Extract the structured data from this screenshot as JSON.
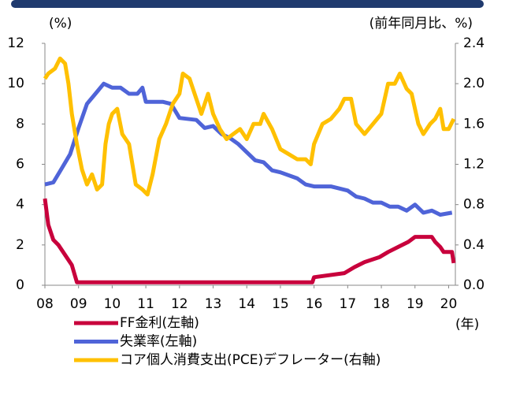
{
  "chart_data": {
    "type": "line",
    "y_label": "(%)",
    "y2_label": "(前年同月比、%)",
    "x_label": "(年)",
    "xlim": [
      2008,
      2020.2
    ],
    "xticks": [
      {
        "value": 2008,
        "label": "08"
      },
      {
        "value": 2009,
        "label": "09"
      },
      {
        "value": 2010,
        "label": "10"
      },
      {
        "value": 2011,
        "label": "11"
      },
      {
        "value": 2012,
        "label": "12"
      },
      {
        "value": 2013,
        "label": "13"
      },
      {
        "value": 2014,
        "label": "14"
      },
      {
        "value": 2015,
        "label": "15"
      },
      {
        "value": 2016,
        "label": "16"
      },
      {
        "value": 2017,
        "label": "17"
      },
      {
        "value": 2018,
        "label": "18"
      },
      {
        "value": 2019,
        "label": "19"
      },
      {
        "value": 2020,
        "label": "20"
      }
    ],
    "ylim": [
      0,
      12
    ],
    "yticks": [
      0,
      2,
      4,
      6,
      8,
      10,
      12
    ],
    "y2lim": [
      0,
      2.4
    ],
    "y2ticks": [
      {
        "value": 0,
        "label": "0.0"
      },
      0.4,
      0.8,
      1.2,
      1.6,
      {
        "value": 2,
        "label": "2.0"
      },
      2.4
    ],
    "series": [
      {
        "name": "FF金利(左軸)",
        "color": "#c8003c",
        "x": [
          2008,
          2008.1,
          2008.25,
          2008.4,
          2008.8,
          2008.95,
          2012,
          2015.95,
          2016,
          2016.9,
          2017.2,
          2017.5,
          2017.95,
          2018.2,
          2018.5,
          2018.8,
          2019,
          2019.5,
          2019.6,
          2019.75,
          2019.85,
          2020.1,
          2020.15
        ],
        "values": [
          4.3,
          3.0,
          2.25,
          2.0,
          1.0,
          0.15,
          0.15,
          0.15,
          0.4,
          0.6,
          0.9,
          1.15,
          1.4,
          1.65,
          1.9,
          2.15,
          2.4,
          2.4,
          2.15,
          1.9,
          1.65,
          1.65,
          1.1
        ]
      },
      {
        "name": "失業率(左軸)",
        "color": "#4f64d8",
        "x": [
          2008,
          2008.25,
          2008.5,
          2008.75,
          2009,
          2009.25,
          2009.5,
          2009.75,
          2010,
          2010.25,
          2010.5,
          2010.75,
          2010.9,
          2011,
          2011.5,
          2011.75,
          2012,
          2012.5,
          2012.75,
          2013,
          2013.25,
          2013.5,
          2013.75,
          2014,
          2014.25,
          2014.5,
          2014.75,
          2015,
          2015.5,
          2015.75,
          2016,
          2016.5,
          2016.75,
          2017,
          2017.25,
          2017.5,
          2017.75,
          2018,
          2018.25,
          2018.5,
          2018.75,
          2019,
          2019.25,
          2019.5,
          2019.75,
          2020.1
        ],
        "values": [
          5.0,
          5.1,
          5.8,
          6.5,
          7.8,
          9.0,
          9.5,
          10.0,
          9.8,
          9.8,
          9.5,
          9.5,
          9.8,
          9.1,
          9.1,
          9.0,
          8.3,
          8.2,
          7.8,
          7.9,
          7.5,
          7.3,
          7.0,
          6.6,
          6.2,
          6.1,
          5.7,
          5.6,
          5.3,
          5.0,
          4.9,
          4.9,
          4.8,
          4.7,
          4.4,
          4.3,
          4.1,
          4.1,
          3.9,
          3.9,
          3.7,
          4.0,
          3.6,
          3.7,
          3.5,
          3.6
        ]
      },
      {
        "name": "コア個人消費支出(PCE)デフレーター(右軸)",
        "color": "#ffc000",
        "axis": "y2",
        "x": [
          2008,
          2008.1,
          2008.3,
          2008.45,
          2008.6,
          2008.7,
          2008.8,
          2008.95,
          2009.1,
          2009.25,
          2009.4,
          2009.55,
          2009.7,
          2009.8,
          2009.9,
          2010,
          2010.15,
          2010.3,
          2010.5,
          2010.7,
          2010.9,
          2011.05,
          2011.2,
          2011.4,
          2011.6,
          2011.8,
          2012,
          2012.1,
          2012.3,
          2012.5,
          2012.65,
          2012.85,
          2013,
          2013.2,
          2013.4,
          2013.6,
          2013.8,
          2014,
          2014.2,
          2014.4,
          2014.5,
          2014.75,
          2015,
          2015.25,
          2015.5,
          2015.75,
          2015.9,
          2016,
          2016.25,
          2016.5,
          2016.75,
          2016.9,
          2017.1,
          2017.25,
          2017.5,
          2017.75,
          2018,
          2018.2,
          2018.4,
          2018.55,
          2018.75,
          2018.9,
          2019.1,
          2019.25,
          2019.45,
          2019.6,
          2019.75,
          2019.85,
          2020,
          2020.15
        ],
        "values": [
          2.05,
          2.1,
          2.15,
          2.25,
          2.2,
          2.0,
          1.7,
          1.4,
          1.15,
          1.0,
          1.1,
          0.95,
          1.0,
          1.4,
          1.6,
          1.7,
          1.75,
          1.5,
          1.4,
          1.0,
          0.95,
          0.9,
          1.1,
          1.45,
          1.6,
          1.8,
          1.9,
          2.1,
          2.05,
          1.85,
          1.7,
          1.9,
          1.7,
          1.55,
          1.45,
          1.5,
          1.55,
          1.45,
          1.6,
          1.6,
          1.7,
          1.55,
          1.35,
          1.3,
          1.25,
          1.25,
          1.2,
          1.4,
          1.6,
          1.65,
          1.75,
          1.85,
          1.85,
          1.6,
          1.5,
          1.6,
          1.7,
          2.0,
          2.0,
          2.1,
          1.95,
          1.9,
          1.6,
          1.5,
          1.6,
          1.65,
          1.75,
          1.55,
          1.55,
          1.65
        ]
      }
    ]
  }
}
